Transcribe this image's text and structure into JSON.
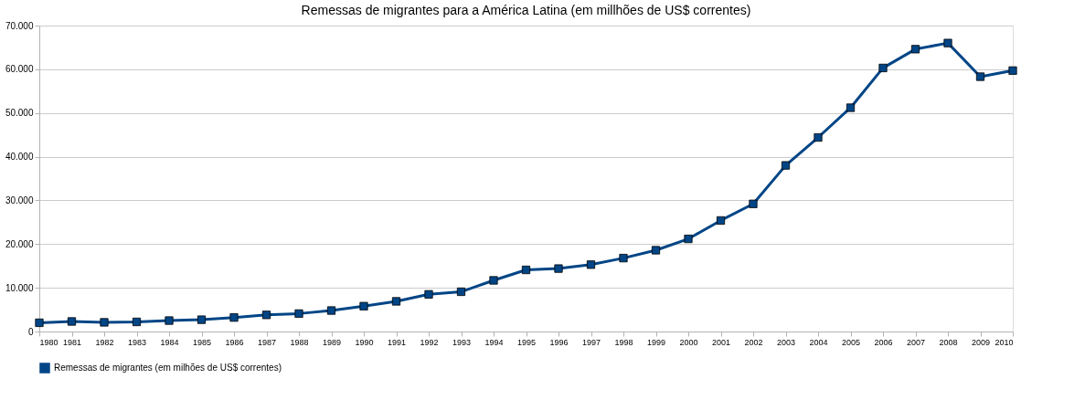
{
  "chart_data": {
    "type": "line",
    "title": "Remessas de migrantes para a América Latina (em millhões de US$ correntes)",
    "categories": [
      "1980",
      "1981",
      "1982",
      "1983",
      "1984",
      "1985",
      "1986",
      "1987",
      "1988",
      "1989",
      "1990",
      "1991",
      "1992",
      "1993",
      "1994",
      "1995",
      "1996",
      "1997",
      "1998",
      "1999",
      "2000",
      "2001",
      "2002",
      "2003",
      "2004",
      "2005",
      "2006",
      "2007",
      "2008",
      "2009",
      "2010"
    ],
    "series": [
      {
        "name": "Remessas de migrantes (em milhões de US$ correntes)",
        "color": "#004586",
        "values": [
          2000,
          2300,
          2100,
          2200,
          2500,
          2700,
          3200,
          3800,
          4100,
          4800,
          5800,
          6900,
          8500,
          9100,
          11700,
          14100,
          14400,
          15300,
          16800,
          18600,
          21200,
          25400,
          29200,
          38000,
          44400,
          51200,
          60300,
          64600,
          66000,
          58300,
          59700
        ]
      }
    ],
    "ylim": [
      0,
      70000
    ],
    "yticks": [
      0,
      {
        "value": 10000,
        "label": "10.000"
      },
      {
        "value": 20000,
        "label": "20.000"
      },
      {
        "value": 30000,
        "label": "30.000"
      },
      {
        "value": 40000,
        "label": "40.000"
      },
      {
        "value": 50000,
        "label": "50.000"
      },
      {
        "value": 60000,
        "label": "60.000"
      },
      {
        "value": 70000,
        "label": "70.000"
      }
    ],
    "grid": "y",
    "legend": "bottom",
    "marker": "square",
    "line_style": "solid"
  }
}
